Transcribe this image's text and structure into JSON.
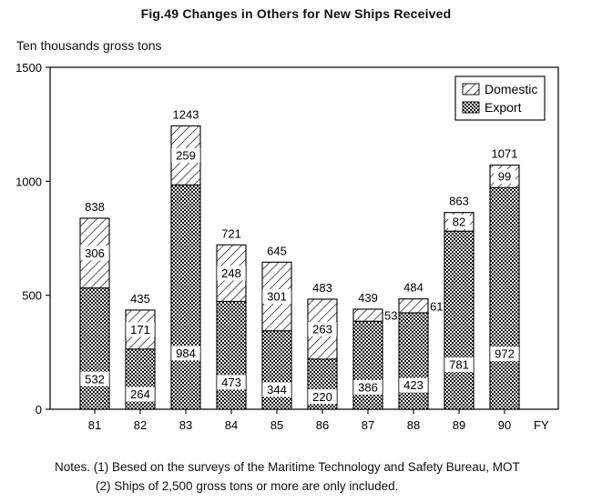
{
  "title": "Fig.49   Changes in Others for New Ships Received",
  "notes": [
    "Notes. (1) Besed on the surveys of the Maritime Technology and Safety Bureau, MOT",
    "(2) Ships of 2,500 gross tons or more are only included."
  ],
  "chart_data": {
    "type": "bar",
    "stacked": true,
    "title": "Fig.49   Changes in Others for New Ships Received",
    "ylabel": "Ten thousands gross tons",
    "xlabel": "FY",
    "ylim": [
      0,
      1500
    ],
    "yticks": [
      0,
      500,
      1000,
      1500
    ],
    "categories": [
      "81",
      "82",
      "83",
      "84",
      "85",
      "86",
      "87",
      "88",
      "89",
      "90"
    ],
    "series": [
      {
        "name": "Export",
        "values": [
          532,
          264,
          984,
          473,
          344,
          220,
          386,
          423,
          781,
          972
        ]
      },
      {
        "name": "Domestic",
        "values": [
          306,
          171,
          259,
          248,
          301,
          263,
          53,
          61,
          82,
          99
        ]
      }
    ],
    "totals": [
      838,
      435,
      1243,
      721,
      645,
      483,
      439,
      484,
      863,
      1071
    ],
    "legend": {
      "position": "top-right",
      "entries": [
        "Domestic",
        "Export"
      ]
    },
    "grid": false
  }
}
